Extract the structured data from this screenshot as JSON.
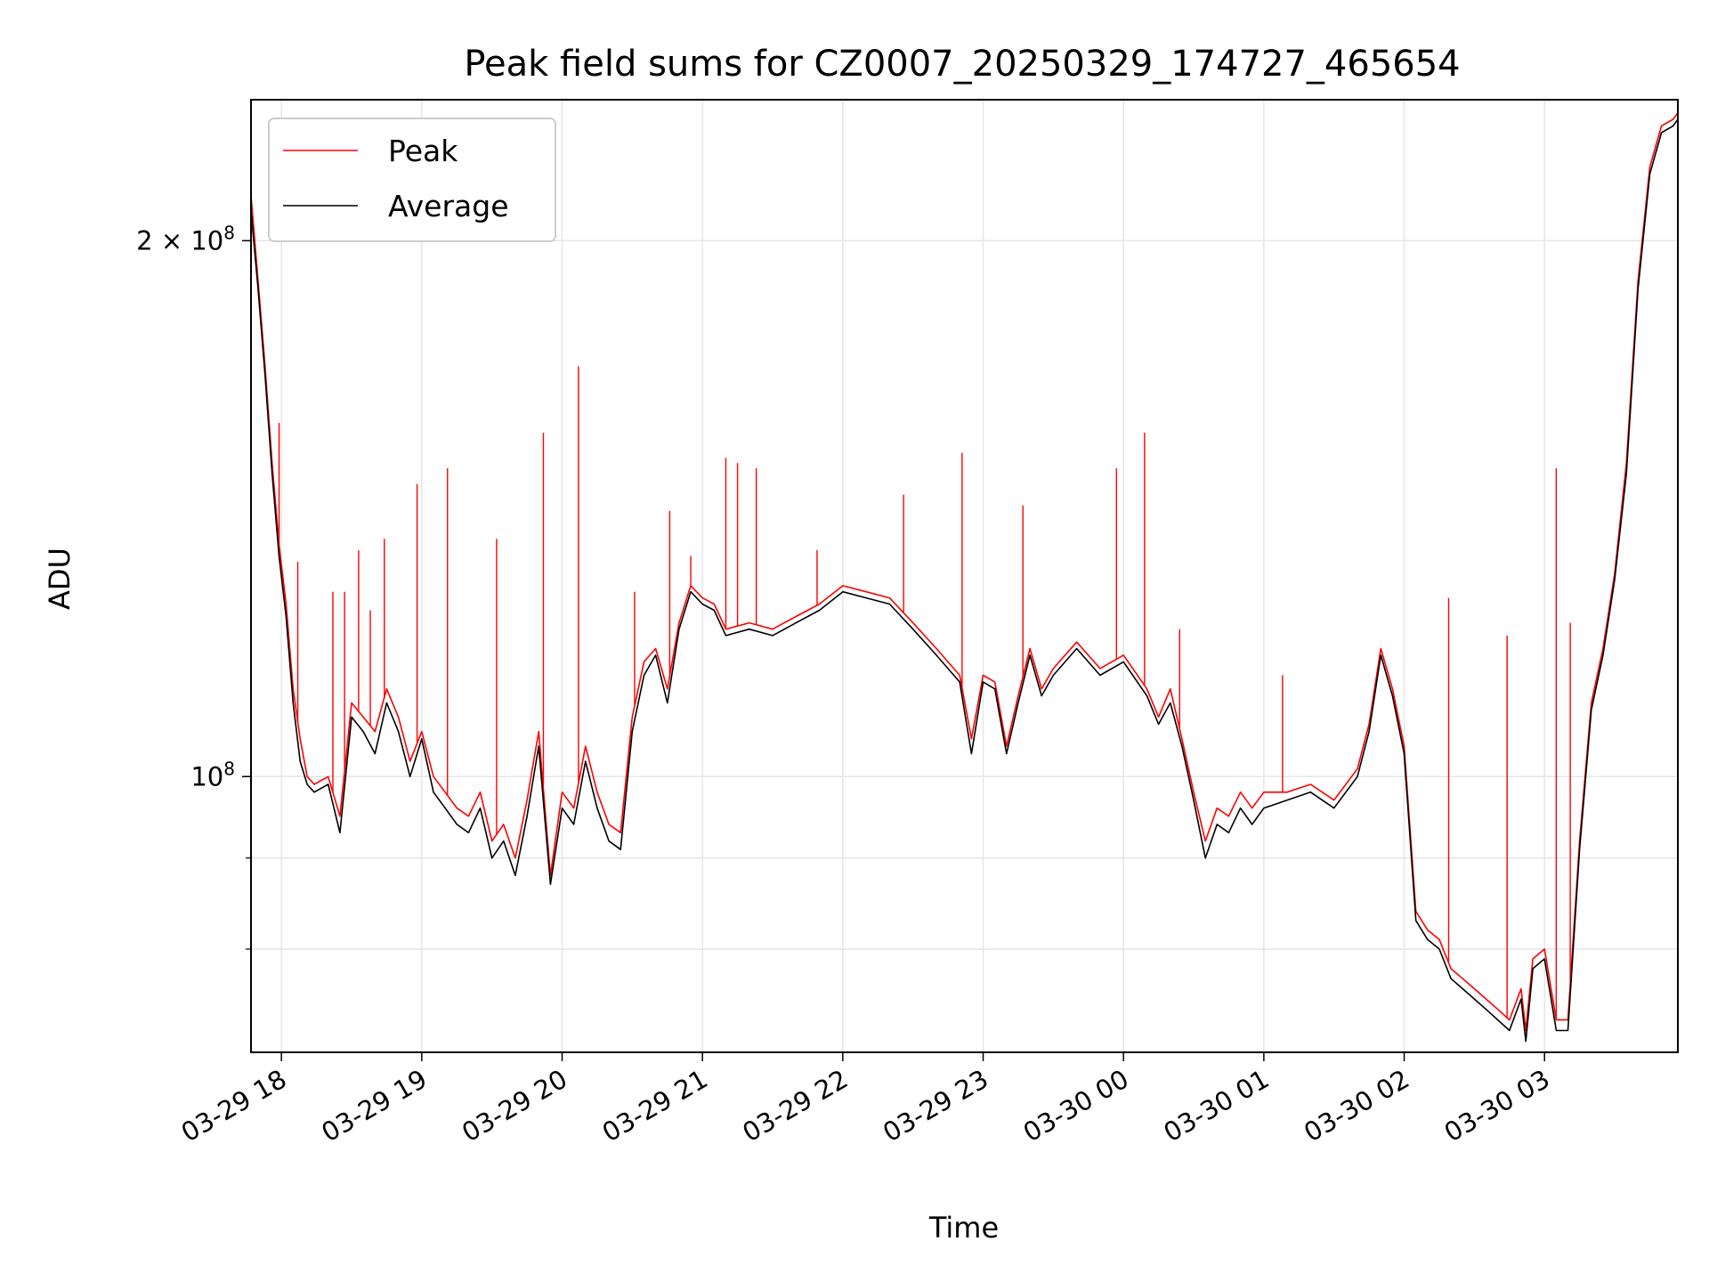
{
  "chart_data": {
    "type": "line",
    "title": "Peak field sums for CZ0007_20250329_174727_465654",
    "xlabel": "Time",
    "ylabel": "ADU",
    "yscale": "log",
    "ylim": [
      70000000,
      240000000
    ],
    "xlim": [
      "2025-03-29 17:47",
      "2025-03-30 03:57"
    ],
    "grid": true,
    "legend_position": "top-left",
    "x_ticks": [
      "03-29 18",
      "03-29 19",
      "03-29 20",
      "03-29 21",
      "03-29 22",
      "03-29 23",
      "03-30 00",
      "03-30 01",
      "03-30 02",
      "03-30 03"
    ],
    "y_ticks": [
      {
        "value": 100000000,
        "label_base": "10",
        "label_exp": "8"
      },
      {
        "value": 200000000,
        "label_base": "2 × 10",
        "label_exp": "8"
      }
    ],
    "y_minor_ticks": [
      80000000,
      90000000
    ],
    "x": [
      "17:47",
      "17:50",
      "17:53",
      "17:56",
      "17:59",
      "18:02",
      "18:05",
      "18:08",
      "18:11",
      "18:14",
      "18:20",
      "18:25",
      "18:30",
      "18:35",
      "18:40",
      "18:45",
      "18:50",
      "18:55",
      "19:00",
      "19:05",
      "19:10",
      "19:15",
      "19:20",
      "19:25",
      "19:30",
      "19:35",
      "19:40",
      "19:45",
      "19:50",
      "19:55",
      "20:00",
      "20:05",
      "20:10",
      "20:15",
      "20:20",
      "20:25",
      "20:30",
      "20:35",
      "20:40",
      "20:45",
      "20:50",
      "20:55",
      "21:00",
      "21:05",
      "21:10",
      "21:20",
      "21:30",
      "21:40",
      "21:50",
      "22:00",
      "22:10",
      "22:20",
      "22:30",
      "22:40",
      "22:50",
      "22:55",
      "23:00",
      "23:05",
      "23:10",
      "23:15",
      "23:20",
      "23:25",
      "23:30",
      "23:40",
      "23:50",
      "00:00",
      "00:10",
      "00:15",
      "00:20",
      "00:25",
      "00:30",
      "00:35",
      "00:40",
      "00:45",
      "00:50",
      "00:55",
      "01:00",
      "01:10",
      "01:20",
      "01:30",
      "01:40",
      "01:45",
      "01:50",
      "01:55",
      "02:00",
      "02:05",
      "02:10",
      "02:15",
      "02:20",
      "02:25",
      "02:30",
      "02:35",
      "02:40",
      "02:45",
      "02:50",
      "02:52",
      "02:55",
      "03:00",
      "03:05",
      "03:10",
      "03:15",
      "03:20",
      "03:25",
      "03:30",
      "03:35",
      "03:40",
      "03:45",
      "03:50",
      "03:55",
      "03:57"
    ],
    "series": [
      {
        "name": "Peak",
        "color": "#ff0000",
        "values": [
          212,
          190,
          170,
          150,
          135,
          125,
          112,
          105,
          100,
          99,
          100,
          95,
          110,
          108,
          106,
          112,
          108,
          102,
          106,
          100,
          98,
          96,
          95,
          98,
          92,
          94,
          90,
          97,
          106,
          88,
          98,
          96,
          104,
          98,
          94,
          93,
          108,
          116,
          118,
          112,
          122,
          128,
          126,
          125,
          121,
          122,
          121,
          123,
          125,
          128,
          127,
          126,
          122,
          118,
          114,
          105,
          114,
          113,
          104,
          111,
          118,
          112,
          115,
          119,
          115,
          117,
          112,
          108,
          112,
          105,
          98,
          92,
          96,
          95,
          98,
          96,
          98,
          98,
          99,
          97,
          101,
          107,
          118,
          112,
          104,
          84,
          82,
          81,
          78,
          77,
          76,
          75,
          74,
          73,
          76,
          72,
          79,
          80,
          73,
          73,
          92,
          110,
          118,
          130,
          150,
          190,
          220,
          232,
          234,
          236
        ]
      },
      {
        "name": "Average",
        "color": "#000000",
        "values": [
          208,
          188,
          168,
          148,
          133,
          123,
          110,
          102,
          99,
          98,
          99,
          93,
          108,
          106,
          103,
          110,
          106,
          100,
          105,
          98,
          96,
          94,
          93,
          96,
          90,
          92,
          88,
          95,
          104,
          87,
          96,
          94,
          102,
          96,
          92,
          91,
          106,
          114,
          117,
          110,
          121,
          127,
          125,
          124,
          120,
          121,
          120,
          122,
          124,
          127,
          126,
          125,
          121,
          117,
          113,
          103,
          113,
          112,
          103,
          110,
          117,
          111,
          114,
          118,
          114,
          116,
          111,
          107,
          110,
          104,
          97,
          90,
          94,
          93,
          96,
          94,
          96,
          97,
          98,
          96,
          100,
          106,
          117,
          111,
          103,
          83,
          81,
          80,
          77,
          76,
          75,
          74,
          73,
          72,
          75,
          71,
          78,
          79,
          72,
          72,
          91,
          109,
          117,
          129,
          148,
          188,
          218,
          230,
          232,
          234
        ]
      }
    ],
    "peak_spikes": [
      {
        "x": "17:59",
        "y": 158
      },
      {
        "x": "18:07",
        "y": 132
      },
      {
        "x": "18:22",
        "y": 127
      },
      {
        "x": "18:27",
        "y": 127
      },
      {
        "x": "18:33",
        "y": 134
      },
      {
        "x": "18:38",
        "y": 124
      },
      {
        "x": "18:44",
        "y": 136
      },
      {
        "x": "18:58",
        "y": 146
      },
      {
        "x": "19:11",
        "y": 149
      },
      {
        "x": "19:32",
        "y": 136
      },
      {
        "x": "19:52",
        "y": 156
      },
      {
        "x": "20:07",
        "y": 170
      },
      {
        "x": "20:31",
        "y": 127
      },
      {
        "x": "20:46",
        "y": 141
      },
      {
        "x": "20:55",
        "y": 133
      },
      {
        "x": "21:10",
        "y": 151
      },
      {
        "x": "21:15",
        "y": 150
      },
      {
        "x": "21:23",
        "y": 149
      },
      {
        "x": "21:49",
        "y": 134
      },
      {
        "x": "22:26",
        "y": 144
      },
      {
        "x": "22:51",
        "y": 152
      },
      {
        "x": "23:17",
        "y": 142
      },
      {
        "x": "23:57",
        "y": 149
      },
      {
        "x": "00:09",
        "y": 156
      },
      {
        "x": "00:24",
        "y": 121
      },
      {
        "x": "01:08",
        "y": 114
      },
      {
        "x": "02:19",
        "y": 126
      },
      {
        "x": "02:44",
        "y": 120
      },
      {
        "x": "03:05",
        "y": 149
      },
      {
        "x": "03:11",
        "y": 122
      }
    ]
  }
}
